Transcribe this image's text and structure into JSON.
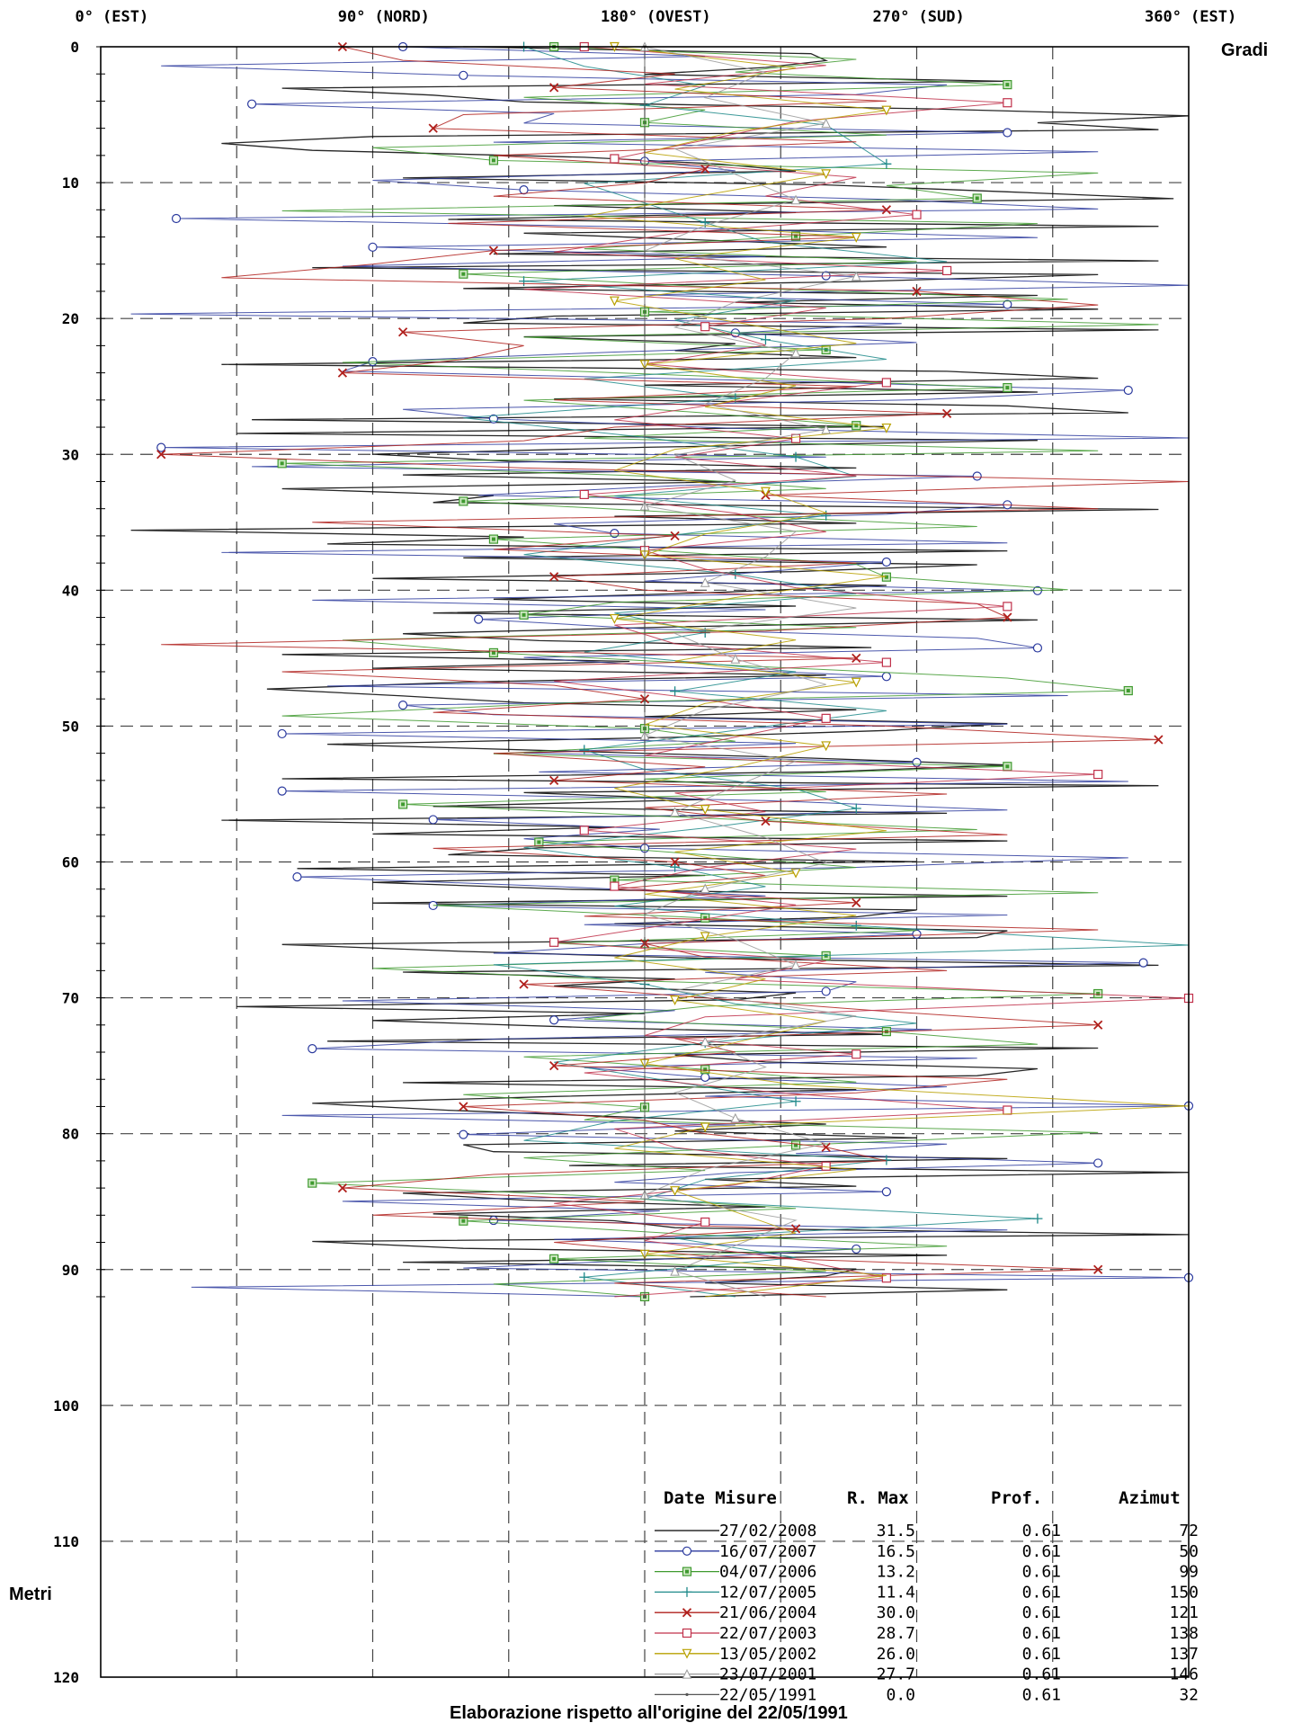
{
  "chart_data": {
    "type": "line",
    "orientation": "vertical-depth-profile",
    "xlabel": "Gradi",
    "ylabel": "Metri",
    "footer": "Elaborazione rispetto all'origine del 22/05/1991",
    "xlim": [
      0,
      360
    ],
    "ylim": [
      0,
      120
    ],
    "grid": true,
    "x_ticks": [
      {
        "value": 0,
        "label": "0°",
        "dir": "(EST)"
      },
      {
        "value": 90,
        "label": "90°",
        "dir": "(NORD)"
      },
      {
        "value": 180,
        "label": "180°",
        "dir": "(OVEST)"
      },
      {
        "value": 270,
        "label": "270°",
        "dir": "(SUD)"
      },
      {
        "value": 360,
        "label": "360°",
        "dir": "(EST)"
      }
    ],
    "y_ticks": [
      0,
      10,
      20,
      30,
      40,
      50,
      60,
      70,
      80,
      90,
      100,
      110,
      120
    ],
    "legend": {
      "placement": "bottom-right",
      "headers": {
        "date": "Date Misure",
        "rmax": "R. Max",
        "prof": "Prof.",
        "azimut": "Azimut"
      },
      "entries": [
        {
          "date": "27/02/2008",
          "rmax": "31.5",
          "prof": "0.61",
          "azimut": "72",
          "color": "#000000",
          "marker": "none"
        },
        {
          "date": "16/07/2007",
          "rmax": "16.5",
          "prof": "0.61",
          "azimut": "50",
          "color": "#2b3a9e",
          "marker": "circle"
        },
        {
          "date": "04/07/2006",
          "rmax": "13.2",
          "prof": "0.61",
          "azimut": "99",
          "color": "#3f9a2f",
          "marker": "filled-square"
        },
        {
          "date": "12/07/2005",
          "rmax": "11.4",
          "prof": "0.61",
          "azimut": "150",
          "color": "#1f8a8a",
          "marker": "plus"
        },
        {
          "date": "21/06/2004",
          "rmax": "30.0",
          "prof": "0.61",
          "azimut": "121",
          "color": "#b0201c",
          "marker": "x"
        },
        {
          "date": "22/07/2003",
          "rmax": "28.7",
          "prof": "0.61",
          "azimut": "138",
          "color": "#c0304a",
          "marker": "square"
        },
        {
          "date": "13/05/2002",
          "rmax": "26.0",
          "prof": "0.61",
          "azimut": "137",
          "color": "#b8a000",
          "marker": "triangle-down"
        },
        {
          "date": "23/07/2001",
          "rmax": "27.7",
          "prof": "0.61",
          "azimut": "146",
          "color": "#9a9a9a",
          "marker": "triangle-up"
        },
        {
          "date": "22/05/1991",
          "rmax": "0.0",
          "prof": "0.61",
          "azimut": "32",
          "color": "#555555",
          "marker": "dot"
        }
      ]
    },
    "depth_step_m": 0.5,
    "max_depth_m": 92,
    "series": [
      {
        "name": "27/02/2008",
        "x": [
          120,
          235,
          240,
          220,
          180,
          300,
          60,
          110,
          140,
          275,
          360,
          310,
          350,
          90,
          40,
          70,
          160,
          205,
          230,
          100,
          240,
          300,
          355,
          150,
          230,
          115,
          350,
          140,
          200,
          260,
          130,
          350,
          70,
          330,
          250,
          120,
          310,
          210,
          330,
          150,
          120,
          350,
          140,
          210,
          190,
          250,
          40,
          280,
          330,
          180,
          310,
          150,
          300,
          340,
          50,
          260,
          45,
          310,
          180,
          90,
          135,
          250,
          100,
          210,
          60,
          130,
          110,
          350,
          170,
          250,
          10,
          140,
          75,
          300,
          120,
          290,
          230,
          90,
          260,
          205,
          130,
          230,
          110,
          310,
          190,
          100,
          145,
          255,
          60,
          175,
          90,
          240,
          120,
          55,
          100,
          140,
          250,
          180,
          300,
          260,
          190,
          75,
          155,
          235,
          300,
          240,
          60,
          350,
          140,
          200,
          110,
          280,
          40,
          170,
          90,
          300,
          145,
          115,
          270,
          65,
          200,
          90,
          155,
          300,
          90,
          270,
          250,
          170,
          300,
          290,
          60,
          120,
          200,
          350,
          100,
          190,
          150,
          230,
          210,
          45,
          180,
          90,
          160,
          260,
          75,
          330,
          190,
          220,
          310,
          290,
          100,
          250,
          150,
          70,
          115,
          175,
          240,
          190,
          270,
          120,
          130,
          300,
          155,
          360,
          200,
          250,
          100,
          140,
          220,
          110,
          170,
          190,
          360,
          70,
          120,
          280,
          100,
          250,
          240,
          200,
          300,
          195
        ]
      },
      {
        "name": "16/07/2007",
        "x": [
          100,
          200,
          20,
          120,
          280,
          250,
          50,
          150,
          140,
          300,
          130,
          330,
          180,
          210,
          90,
          140,
          260,
          330,
          25,
          195,
          310,
          90,
          220,
          80,
          240,
          360,
          180,
          300,
          10,
          265,
          210,
          270,
          170,
          90,
          80,
          220,
          340,
          270,
          100,
          130,
          210,
          360,
          20,
          240,
          50,
          290,
          190,
          125,
          300,
          260,
          150,
          170,
          300,
          40,
          260,
          220,
          180,
          310,
          70,
          220,
          125,
          180,
          290,
          310,
          140,
          190,
          260,
          75,
          320,
          100,
          130,
          300,
          60,
          230,
          140,
          270,
          145,
          340,
          60,
          220,
          300,
          110,
          185,
          140,
          180,
          340,
          250,
          65,
          150,
          220,
          110,
          300,
          160,
          270,
          180,
          130,
          345,
          200,
          250,
          240,
          80,
          190,
          150,
          275,
          130,
          70,
          290,
          160,
          200,
          280,
          200,
          360,
          60,
          210,
          120,
          280,
          230,
          330,
          210,
          170,
          260,
          80,
          185,
          130,
          300,
          150,
          250,
          190,
          120,
          360,
          30,
          180
        ]
      },
      {
        "name": "04/07/2006",
        "x": [
          150,
          250,
          210,
          300,
          140,
          200,
          180,
          260,
          90,
          130,
          330,
          260,
          290,
          60,
          310,
          230,
          160,
          270,
          120,
          200,
          320,
          180,
          350,
          140,
          240,
          80,
          190,
          300,
          140,
          200,
          250,
          160,
          330,
          60,
          180,
          240,
          120,
          200,
          290,
          130,
          190,
          250,
          260,
          320,
          170,
          140,
          250,
          80,
          130,
          210,
          300,
          340,
          150,
          60,
          180,
          210,
          130,
          300,
          180,
          240,
          100,
          190,
          290,
          145,
          200,
          250,
          170,
          330,
          110,
          200,
          270,
          150,
          240,
          90,
          180,
          330,
          200,
          160,
          260,
          310,
          140,
          200,
          250,
          120,
          180,
          160,
          330,
          230,
          140,
          200,
          70,
          160,
          230,
          120,
          190,
          280,
          150,
          240,
          130,
          180
        ]
      },
      {
        "name": "12/07/2005",
        "x": [
          140,
          160,
          200,
          180,
          240,
          250,
          260,
          160,
          180,
          200,
          220,
          280,
          140,
          230,
          190,
          220,
          260,
          160,
          210,
          120,
          180,
          230,
          250,
          170,
          240,
          190,
          140,
          210,
          250,
          170,
          200,
          160,
          230,
          190,
          260,
          210,
          160,
          180,
          230,
          250,
          200,
          140,
          190,
          220,
          170,
          250,
          360,
          130,
          180,
          210,
          270,
          200,
          150,
          190,
          230,
          170,
          140,
          260,
          200,
          180,
          310,
          190,
          230,
          160,
          210
        ]
      },
      {
        "name": "21/06/2004",
        "x": [
          80,
          100,
          190,
          150,
          260,
          120,
          110,
          250,
          130,
          200,
          180,
          130,
          260,
          115,
          250,
          130,
          90,
          40,
          270,
          330,
          260,
          100,
          140,
          120,
          80,
          250,
          150,
          280,
          170,
          140,
          20,
          140,
          360,
          220,
          330,
          70,
          190,
          130,
          250,
          150,
          180,
          290,
          300,
          220,
          20,
          250,
          60,
          150,
          180,
          110,
          260,
          350,
          130,
          200,
          150,
          280,
          180,
          220,
          300,
          110,
          190,
          220,
          170,
          250,
          160,
          330,
          180,
          200,
          280,
          140,
          200,
          260,
          330,
          190,
          210,
          150,
          300,
          250,
          120,
          180,
          200,
          240,
          260,
          130,
          80,
          180,
          90,
          230,
          150,
          200,
          330,
          170,
          240
        ]
      },
      {
        "name": "22/07/2003",
        "x": [
          160,
          240,
          180,
          300,
          230,
          200,
          170,
          250,
          220,
          270,
          190,
          150,
          280,
          140,
          240,
          200,
          220,
          180,
          260,
          210,
          170,
          230,
          190,
          250,
          160,
          210,
          240,
          180,
          200,
          230,
          300,
          170,
          190,
          260,
          150,
          200,
          240,
          210,
          180,
          330,
          190,
          220,
          160,
          250,
          200,
          170,
          230,
          190,
          150,
          240,
          210,
          360,
          200,
          180,
          250,
          160,
          220,
          300,
          170,
          190,
          240,
          210,
          150,
          200,
          180,
          230,
          260,
          170
        ]
      },
      {
        "name": "13/05/2002",
        "x": [
          170,
          230,
          190,
          260,
          210,
          180,
          240,
          200,
          160,
          250,
          190,
          220,
          170,
          210,
          250,
          180,
          230,
          200,
          260,
          190,
          170,
          220,
          240,
          200,
          180,
          260,
          210,
          170,
          230,
          190,
          250,
          200,
          180,
          240,
          210,
          170,
          200,
          260,
          190,
          230,
          180,
          250,
          200,
          170,
          220,
          190,
          240,
          210,
          180,
          230,
          360,
          200,
          170,
          250,
          190,
          210,
          230,
          180,
          260,
          200
        ]
      },
      {
        "name": "23/07/2001",
        "x": [
          180,
          220,
          200,
          240,
          190,
          210,
          230,
          200,
          180,
          250,
          210,
          190,
          230,
          220,
          200,
          240,
          190,
          210,
          180,
          230,
          220,
          200,
          250,
          190,
          210,
          240,
          200,
          180,
          230,
          210,
          190,
          220,
          240,
          200,
          180,
          210,
          230,
          190,
          250,
          200,
          220,
          190,
          210,
          240,
          200,
          180,
          230,
          210,
          190,
          220
        ]
      },
      {
        "name": "22/05/1991",
        "x": [
          180,
          180,
          180,
          180,
          180,
          180,
          180,
          180,
          180,
          180
        ]
      }
    ]
  }
}
